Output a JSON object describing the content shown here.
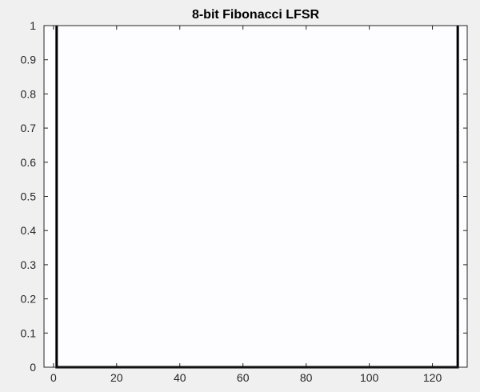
{
  "chart_data": {
    "type": "line",
    "title": "8-bit Fibonacci LFSR",
    "xlabel": "",
    "ylabel": "",
    "xlim": [
      -3,
      131
    ],
    "ylim": [
      0,
      1
    ],
    "x_ticks": [
      0,
      20,
      40,
      60,
      80,
      100,
      120
    ],
    "y_ticks": [
      0,
      0.1,
      0.2,
      0.3,
      0.4,
      0.5,
      0.6,
      0.7,
      0.8,
      0.9,
      1
    ],
    "x_tick_labels": [
      "0",
      "20",
      "40",
      "60",
      "80",
      "100",
      "120"
    ],
    "y_tick_labels": [
      "0",
      "0.1",
      "0.2",
      "0.3",
      "0.4",
      "0.5",
      "0.6",
      "0.7",
      "0.8",
      "0.9",
      "1"
    ],
    "grid": false,
    "series": [
      {
        "x": [
          1,
          1,
          128,
          128
        ],
        "y": [
          1,
          0,
          0,
          1
        ],
        "color": "#000000"
      }
    ],
    "colors": {
      "figure_bg": "#f0f0f0",
      "axes_bg": "#fdfcfe",
      "axes_edge": "#262626",
      "line": "#000000"
    }
  }
}
